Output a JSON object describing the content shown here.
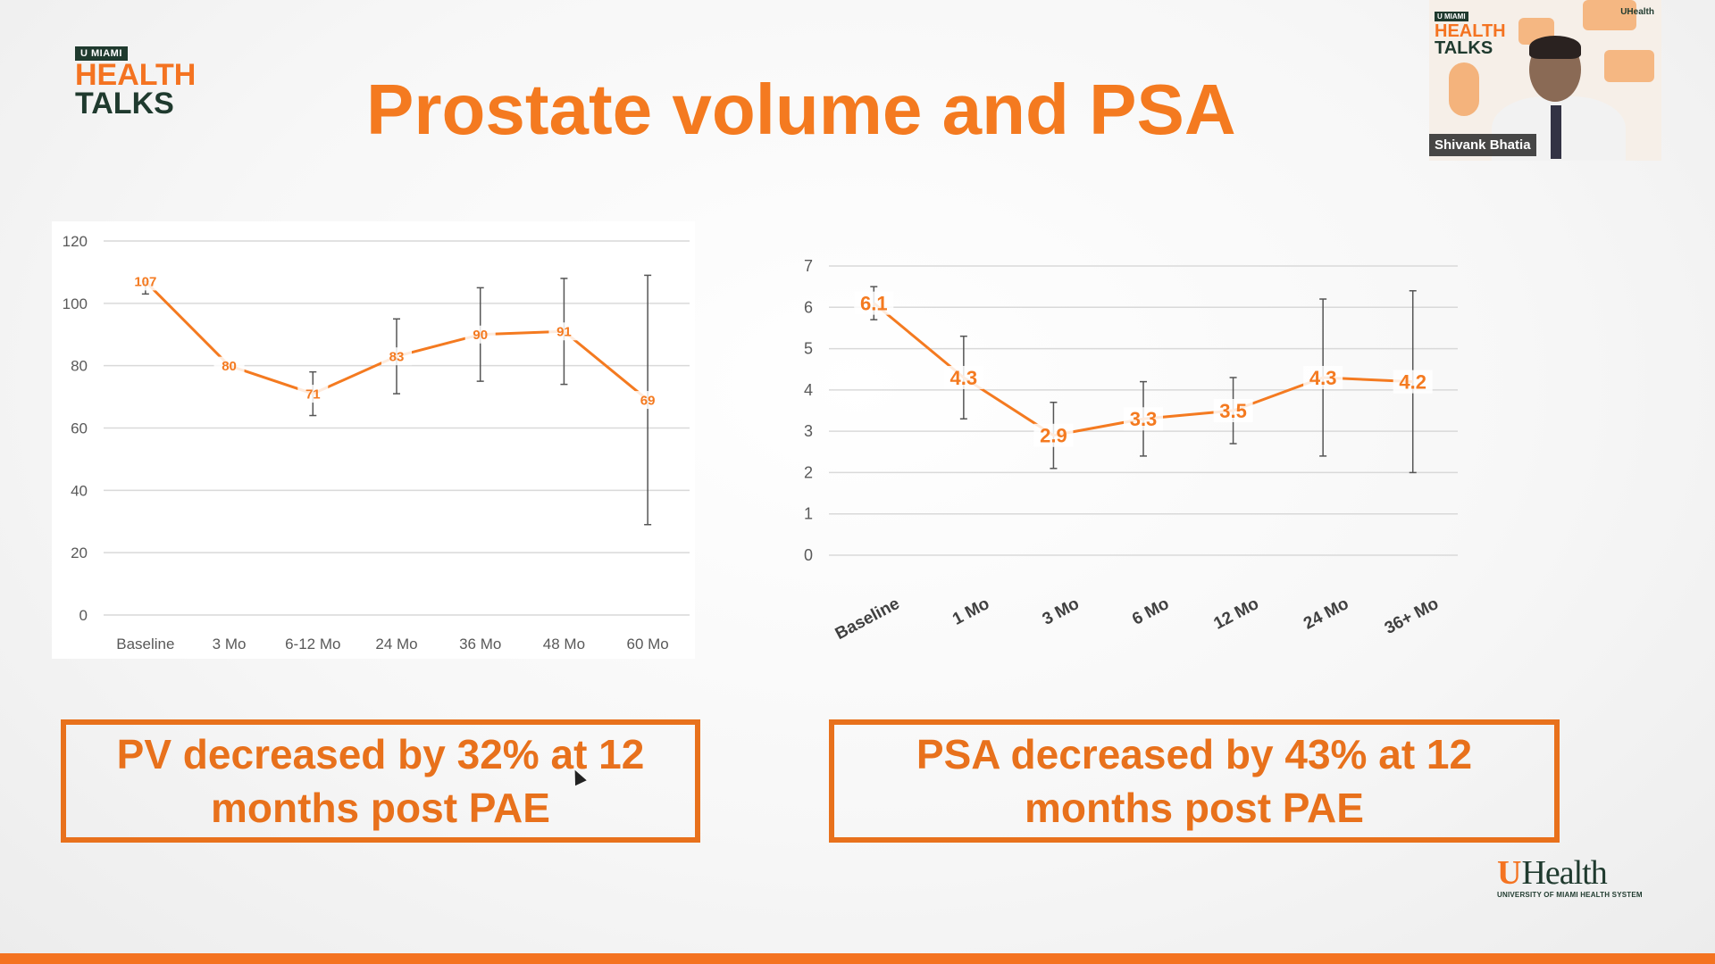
{
  "logo": {
    "badge": "U MIAMI",
    "line1": "HEALTH",
    "line2": "TALKS"
  },
  "slide": {
    "title": "Prostate volume and PSA"
  },
  "webcam": {
    "name": "Shivank Bhatia",
    "logo_badge": "U MIAMI",
    "logo_line1": "HEALTH",
    "logo_line2": "TALKS",
    "corner_logo": "UHealth"
  },
  "callouts": {
    "pv": {
      "line1": "PV decreased by 32% at 12",
      "line2": "months post PAE"
    },
    "psa": {
      "line1": "PSA decreased by 43% at 12",
      "line2": "months post PAE"
    }
  },
  "footer_logo": {
    "u": "U",
    "health": "Health",
    "sub": "UNIVERSITY OF MIAMI HEALTH SYSTEM"
  },
  "colors": {
    "accent": "#f47a20",
    "dark_green": "#1f3a2e",
    "error_bar": "#555555",
    "grid": "#d9d9d9"
  },
  "chart_data": [
    {
      "type": "line",
      "title": "",
      "categories": [
        "Baseline",
        "3 Mo",
        "6-12 Mo",
        "24 Mo",
        "36 Mo",
        "48 Mo",
        "60 Mo"
      ],
      "series": [
        {
          "values": [
            107,
            80,
            71,
            83,
            90,
            91,
            69
          ],
          "error_low": [
            103,
            80,
            64,
            71,
            75,
            74,
            29
          ],
          "error_high": [
            107,
            80,
            78,
            95,
            105,
            108,
            109
          ]
        }
      ],
      "ylim": [
        0,
        120
      ],
      "yticks": [
        0,
        20,
        40,
        60,
        80,
        100,
        120
      ],
      "grid": true
    },
    {
      "type": "line",
      "title": "",
      "categories": [
        "Baseline",
        "1 Mo",
        "3 Mo",
        "6 Mo",
        "12 Mo",
        "24 Mo",
        "36+ Mo"
      ],
      "series": [
        {
          "values": [
            6.1,
            4.3,
            2.9,
            3.3,
            3.5,
            4.3,
            4.2
          ],
          "error_low": [
            5.7,
            3.3,
            2.1,
            2.4,
            2.7,
            2.4,
            2.0
          ],
          "error_high": [
            6.5,
            5.3,
            3.7,
            4.2,
            4.3,
            6.2,
            6.4
          ]
        }
      ],
      "ylim": [
        0,
        7
      ],
      "yticks": [
        0,
        1,
        2,
        3,
        4,
        5,
        6,
        7
      ],
      "grid": true
    }
  ]
}
